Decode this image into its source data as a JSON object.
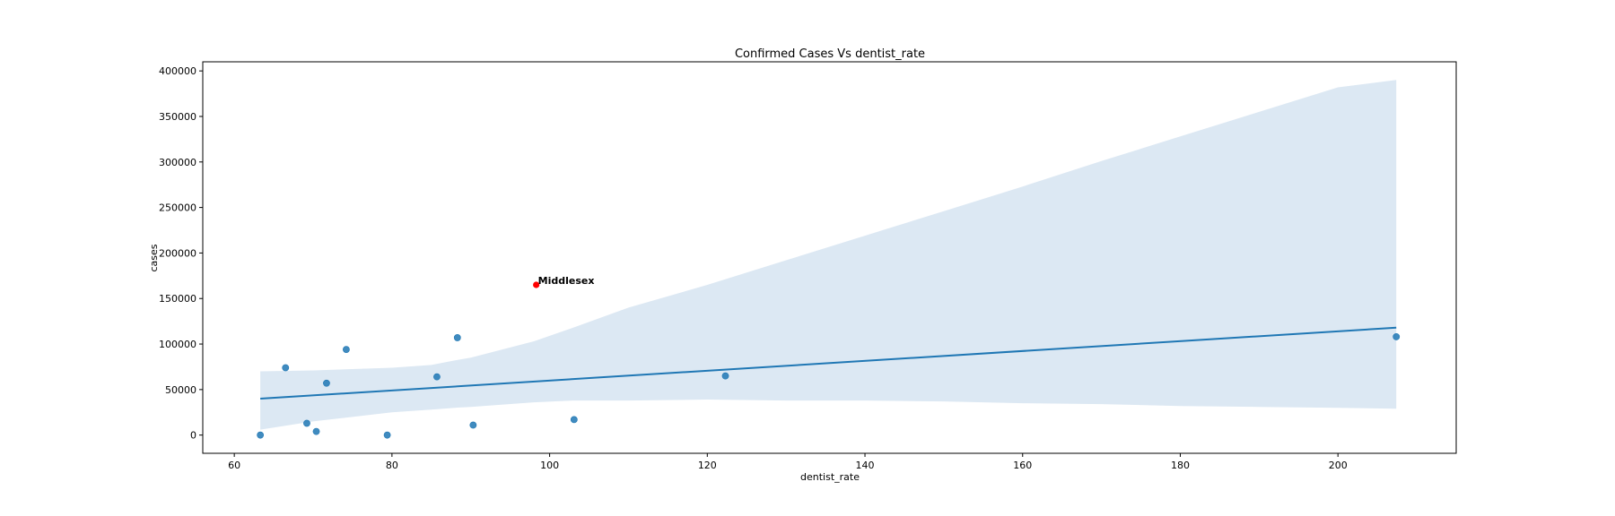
{
  "chart_data": {
    "type": "scatter",
    "title": "Confirmed Cases Vs dentist_rate",
    "xlabel": "dentist_rate",
    "ylabel": "cases",
    "xlim": [
      56,
      215
    ],
    "ylim": [
      -20000,
      410000
    ],
    "x_ticks": [
      60,
      80,
      100,
      120,
      140,
      160,
      180,
      200
    ],
    "y_ticks": [
      0,
      50000,
      100000,
      150000,
      200000,
      250000,
      300000,
      350000,
      400000
    ],
    "grid": false,
    "colors": {
      "points": "#1f77b4",
      "regression_line": "#1f77b4",
      "confidence_band": "#dce8f3",
      "highlight": "#ff0000"
    },
    "points": [
      {
        "x": 63.3,
        "y": 0
      },
      {
        "x": 66.5,
        "y": 74000
      },
      {
        "x": 69.2,
        "y": 13000
      },
      {
        "x": 70.4,
        "y": 4000
      },
      {
        "x": 71.7,
        "y": 57000
      },
      {
        "x": 74.2,
        "y": 94000
      },
      {
        "x": 79.4,
        "y": 0
      },
      {
        "x": 85.7,
        "y": 64000
      },
      {
        "x": 88.3,
        "y": 107000
      },
      {
        "x": 90.3,
        "y": 11000
      },
      {
        "x": 103.1,
        "y": 17000
      },
      {
        "x": 122.3,
        "y": 65000
      },
      {
        "x": 207.4,
        "y": 108000
      }
    ],
    "highlight": {
      "x": 98.3,
      "y": 165000,
      "label": "Middlesex"
    },
    "regression": {
      "x": [
        63.3,
        207.4
      ],
      "y": [
        40000,
        118000
      ]
    },
    "confidence_band": {
      "x": [
        63.3,
        70,
        80,
        85,
        88,
        90,
        98,
        103,
        110,
        120,
        130,
        140,
        150,
        160,
        170,
        180,
        190,
        200,
        207.4
      ],
      "upper": [
        70000,
        71000,
        74000,
        77000,
        82000,
        85000,
        103000,
        118000,
        140000,
        165000,
        192000,
        219000,
        246000,
        273000,
        301000,
        328000,
        355000,
        382000,
        390000
      ],
      "lower": [
        6000,
        15000,
        25000,
        28000,
        30000,
        31000,
        36000,
        38000,
        38000,
        39000,
        38000,
        38000,
        37000,
        35000,
        34000,
        32000,
        31000,
        30000,
        29000
      ]
    }
  }
}
